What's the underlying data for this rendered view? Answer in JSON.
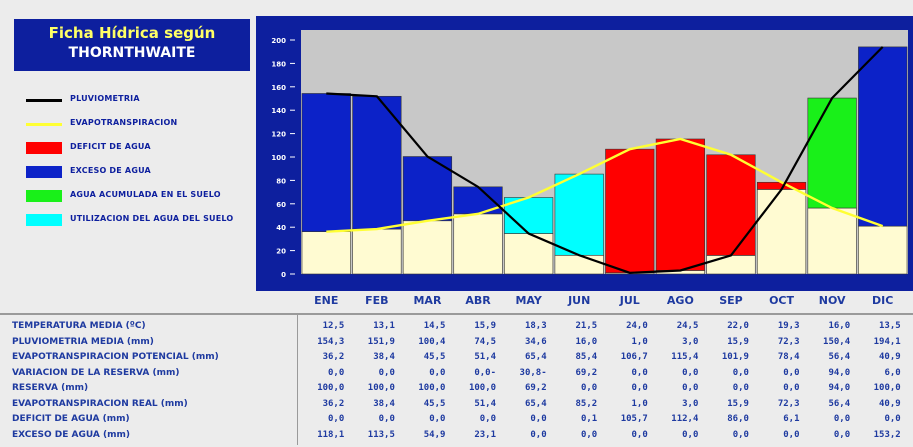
{
  "title": {
    "line1": "Ficha Hídrica según",
    "line2": "THORNTHWAITE"
  },
  "colors": {
    "plot_bg": "#c8c8c8",
    "frame_bg": "#0d1f9e",
    "pluvio": "#000000",
    "evapo": "#ffff33",
    "deficit": "#ff0000",
    "exceso": "#0c22c8",
    "acumulada": "#19f019",
    "utilizacion": "#00ffff",
    "reserve": "#fffbd2"
  },
  "legend": [
    {
      "key": "pluvio",
      "label": "PLUVIOMETRIA",
      "kind": "line"
    },
    {
      "key": "evapo",
      "label": "EVAPOTRANSPIRACION",
      "kind": "line"
    },
    {
      "key": "deficit",
      "label": "DEFICIT DE AGUA",
      "kind": "box"
    },
    {
      "key": "exceso",
      "label": "EXCESO DE AGUA",
      "kind": "box"
    },
    {
      "key": "acumulada",
      "label": "AGUA ACUMULADA EN EL SUELO",
      "kind": "box"
    },
    {
      "key": "utilizacion",
      "label": "UTILIZACION DEL AGUA DEL SUELO",
      "kind": "box"
    }
  ],
  "chart_data": {
    "type": "bar",
    "categories": [
      "ENE",
      "FEB",
      "MAR",
      "ABR",
      "MAY",
      "JUN",
      "JUL",
      "AGO",
      "SEP",
      "OCT",
      "NOV",
      "DIC"
    ],
    "ylim": [
      0,
      200
    ],
    "yticks": [
      "0",
      "20",
      "40",
      "60",
      "80",
      "100",
      "120",
      "140",
      "160",
      "180",
      "200"
    ],
    "series": [
      {
        "name": "PLUVIOMETRIA",
        "values": [
          154.3,
          151.9,
          100.4,
          74.5,
          34.6,
          16.0,
          1.0,
          3.0,
          15.9,
          72.3,
          150.4,
          194.1
        ]
      },
      {
        "name": "EVAPOTRANSPIRACION",
        "values": [
          36.2,
          38.4,
          45.5,
          51.4,
          65.4,
          85.4,
          106.7,
          115.4,
          101.9,
          78.4,
          56.4,
          40.9
        ]
      }
    ]
  },
  "table": {
    "rows": [
      {
        "label": "TEMPERATURA MEDIA  (ºC)",
        "values": [
          "12,5",
          "13,1",
          "14,5",
          "15,9",
          "18,3",
          "21,5",
          "24,0",
          "24,5",
          "22,0",
          "19,3",
          "16,0",
          "13,5"
        ]
      },
      {
        "label": "PLUVIOMETRIA MEDIA   (mm)",
        "values": [
          "154,3",
          "151,9",
          "100,4",
          "74,5",
          "34,6",
          "16,0",
          "1,0",
          "3,0",
          "15,9",
          "72,3",
          "150,4",
          "194,1"
        ]
      },
      {
        "label": "EVAPOTRANSPIRACION POTENCIAL  (mm)",
        "values": [
          "36,2",
          "38,4",
          "45,5",
          "51,4",
          "65,4",
          "85,4",
          "106,7",
          "115,4",
          "101,9",
          "78,4",
          "56,4",
          "40,9"
        ]
      },
      {
        "label": "VARIACION DE LA RESERVA  (mm)",
        "values": [
          "0,0",
          "0,0",
          "0,0",
          "0,0-",
          "30,8-",
          "69,2",
          "0,0",
          "0,0",
          "0,0",
          "0,0",
          "94,0",
          "6,0"
        ]
      },
      {
        "label": "RESERVA  (mm)",
        "values": [
          "100,0",
          "100,0",
          "100,0",
          "100,0",
          "69,2",
          "0,0",
          "0,0",
          "0,0",
          "0,0",
          "0,0",
          "94,0",
          "100,0"
        ]
      },
      {
        "label": "EVAPOTRANSPIRACION REAL  (mm)",
        "values": [
          "36,2",
          "38,4",
          "45,5",
          "51,4",
          "65,4",
          "85,2",
          "1,0",
          "3,0",
          "15,9",
          "72,3",
          "56,4",
          "40,9"
        ]
      },
      {
        "label": "DEFICIT DE AGUA  (mm)",
        "values": [
          "0,0",
          "0,0",
          "0,0",
          "0,0",
          "0,0",
          "0,1",
          "105,7",
          "112,4",
          "86,0",
          "6,1",
          "0,0",
          "0,0"
        ]
      },
      {
        "label": "EXCESO DE AGUA  (mm)",
        "values": [
          "118,1",
          "113,5",
          "54,9",
          "23,1",
          "0,0",
          "0,0",
          "0,0",
          "0,0",
          "0,0",
          "0,0",
          "0,0",
          "153,2"
        ]
      }
    ]
  }
}
